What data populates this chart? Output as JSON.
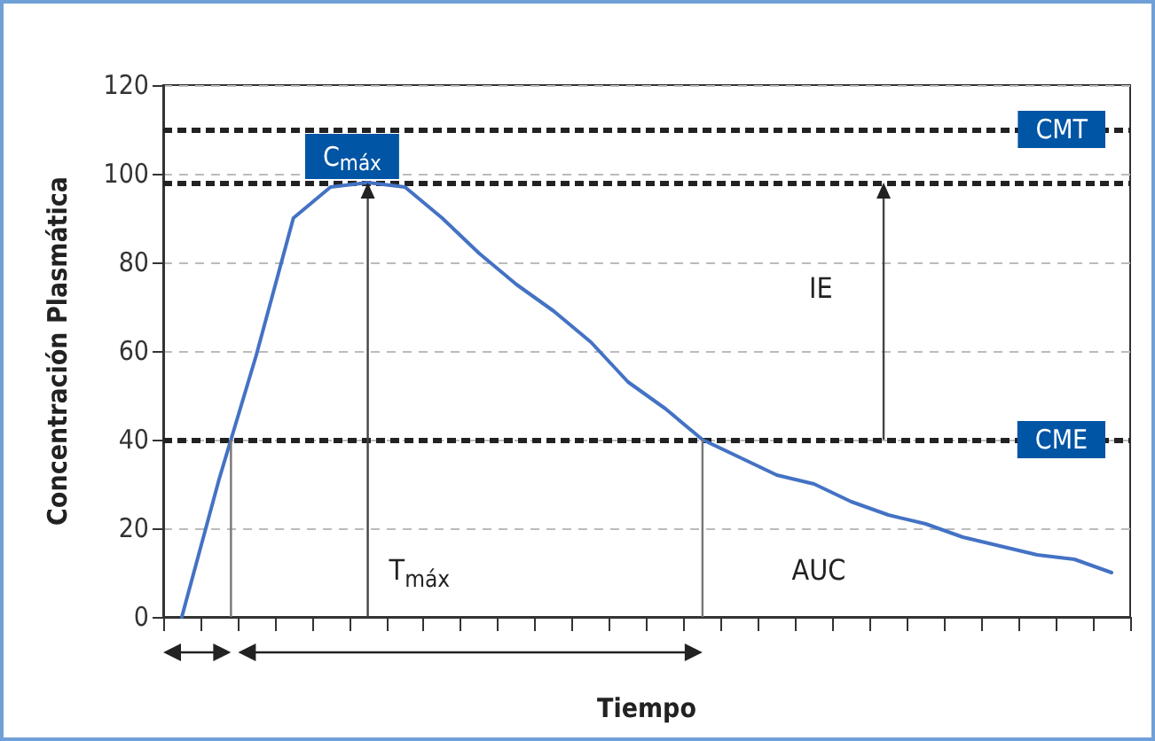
{
  "chart_data": {
    "type": "line",
    "xlabel": "Tiempo",
    "ylabel": "Concentración Plasmática",
    "categories": [
      null,
      null,
      null,
      null,
      null,
      null,
      null,
      null,
      null,
      null,
      null,
      null,
      null,
      null,
      null,
      null,
      null,
      null,
      null,
      null,
      null,
      null,
      null,
      null,
      null,
      null
    ],
    "series": [
      {
        "color": "#4472c4",
        "values": [
          0,
          31,
          59,
          90,
          97,
          98,
          97,
          90,
          82,
          75,
          69,
          62,
          53,
          47,
          40,
          36,
          32,
          30,
          26,
          23,
          21,
          18,
          16,
          14,
          13,
          10
        ]
      }
    ],
    "ylim": [
      0,
      120
    ],
    "yticks": [
      0,
      20,
      40,
      60,
      80,
      100,
      120
    ],
    "tick_labels": "y",
    "grid": "y",
    "marker": "none",
    "line_style": "solid",
    "ref_lines": [
      {
        "axis": "y",
        "value": 110,
        "label": "CMT",
        "color": "#222222",
        "line_style": "dashed"
      },
      {
        "axis": "y",
        "value": 98,
        "label": "C$_{máx}$",
        "color": "#222222",
        "line_style": "dashed"
      },
      {
        "axis": "y",
        "value": 40,
        "label": "CME",
        "color": "#222222",
        "line_style": "dashed"
      }
    ],
    "annotations": [
      "IE",
      "T$_{máx}$",
      "AUC"
    ]
  }
}
